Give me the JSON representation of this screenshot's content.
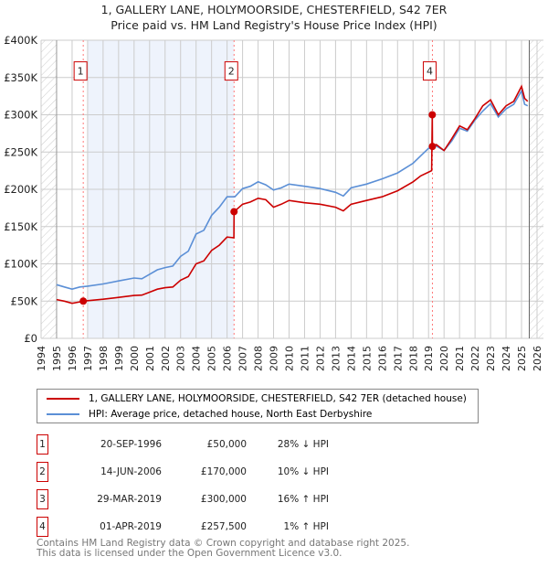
{
  "chart_data": {
    "type": "line",
    "title": "1, GALLERY LANE, HOLYMOORSIDE, CHESTERFIELD, S42 7ER",
    "subtitle": "Price paid vs. HM Land Registry's House Price Index (HPI)",
    "xlim": [
      1994,
      2026
    ],
    "ylim": [
      0,
      400000
    ],
    "yticks": [
      0,
      50000,
      100000,
      150000,
      200000,
      250000,
      300000,
      350000,
      400000
    ],
    "ytick_labels": [
      "£0",
      "£50K",
      "£100K",
      "£150K",
      "£200K",
      "£250K",
      "£300K",
      "£350K",
      "£400K"
    ],
    "xticks": [
      1994,
      1995,
      1996,
      1997,
      1998,
      1999,
      2000,
      2001,
      2002,
      2003,
      2004,
      2005,
      2006,
      2007,
      2008,
      2009,
      2010,
      2011,
      2012,
      2013,
      2014,
      2015,
      2016,
      2017,
      2018,
      2019,
      2020,
      2021,
      2022,
      2023,
      2024,
      2025,
      2026
    ],
    "grid": true,
    "data_range": [
      1995,
      2025.5
    ],
    "shaded_range": [
      1997,
      2006.45
    ],
    "legend_placement": "below",
    "series": [
      {
        "name": "1, GALLERY LANE, HOLYMOORSIDE, CHESTERFIELD, S42 7ER (detached house)",
        "color": "#cc0000",
        "x": [
          1995,
          1995.5,
          1996,
          1996.5,
          1996.72,
          1997,
          1998,
          1999,
          2000,
          2000.5,
          2001,
          2001.5,
          2002,
          2002.5,
          2003,
          2003.5,
          2004,
          2004.5,
          2005,
          2005.5,
          2006,
          2006.44,
          2006.45,
          2007,
          2007.5,
          2008,
          2008.5,
          2009,
          2009.5,
          2010,
          2011,
          2012,
          2013,
          2013.5,
          2014,
          2015,
          2016,
          2017,
          2018,
          2018.5,
          2019.2,
          2019.24,
          2019.25,
          2019.5,
          2020,
          2020.5,
          2021,
          2021.5,
          2022,
          2022.5,
          2023,
          2023.5,
          2024,
          2024.5,
          2025,
          2025.2,
          2025.4
        ],
        "y": [
          52000,
          50000,
          47000,
          49000,
          50000,
          50500,
          52500,
          55000,
          57500,
          58000,
          62000,
          66000,
          68000,
          69000,
          78000,
          83000,
          100000,
          104000,
          118000,
          125000,
          136000,
          135000,
          170000,
          180000,
          183000,
          188000,
          186000,
          176000,
          180000,
          185000,
          182000,
          180000,
          176000,
          171000,
          180000,
          185000,
          190000,
          198000,
          210000,
          218000,
          225000,
          300000,
          257500,
          260000,
          252000,
          268000,
          285000,
          280000,
          295000,
          312000,
          320000,
          300000,
          312000,
          318000,
          338000,
          322000,
          318000
        ]
      },
      {
        "name": "HPI: Average price, detached house, North East Derbyshire",
        "color": "#5b8fd6",
        "x": [
          1995,
          1995.5,
          1996,
          1996.5,
          1997,
          1998,
          1999,
          2000,
          2000.5,
          2001,
          2001.5,
          2002,
          2002.5,
          2003,
          2003.5,
          2004,
          2004.5,
          2005,
          2005.5,
          2006,
          2006.5,
          2007,
          2007.5,
          2008,
          2008.5,
          2009,
          2009.5,
          2010,
          2011,
          2012,
          2013,
          2013.5,
          2014,
          2015,
          2016,
          2017,
          2018,
          2018.5,
          2019,
          2019.5,
          2020,
          2020.5,
          2021,
          2021.5,
          2022,
          2022.5,
          2023,
          2023.5,
          2024,
          2024.5,
          2025,
          2025.2,
          2025.4
        ],
        "y": [
          72000,
          69000,
          66000,
          69000,
          70000,
          73000,
          77000,
          81000,
          80000,
          86000,
          92000,
          95000,
          97000,
          110000,
          117000,
          140000,
          145000,
          165000,
          176000,
          190000,
          190000,
          201000,
          204000,
          210000,
          206000,
          199000,
          202000,
          207000,
          204000,
          201000,
          196000,
          191000,
          202000,
          207000,
          214000,
          222000,
          235000,
          245000,
          255000,
          258000,
          252000,
          265000,
          282000,
          278000,
          293000,
          305000,
          315000,
          297000,
          308000,
          314000,
          332000,
          314000,
          312000
        ]
      }
    ],
    "annotations": [
      {
        "label": "1",
        "x": 1996.72,
        "box_y": 360000
      },
      {
        "label": "2",
        "x": 2006.45,
        "box_y": 360000
      },
      {
        "label": "4",
        "x": 2019.25,
        "box_y": 360000
      }
    ],
    "sales": [
      {
        "num": "1",
        "x": 1996.72,
        "y": 50000
      },
      {
        "num": "2",
        "x": 2006.45,
        "y": 170000
      },
      {
        "num": "3",
        "x": 2019.24,
        "y": 300000
      },
      {
        "num": "4",
        "x": 2019.25,
        "y": 257500
      }
    ]
  },
  "legend": {
    "property": "1, GALLERY LANE, HOLYMOORSIDE, CHESTERFIELD, S42 7ER (detached house)",
    "hpi": "HPI: Average price, detached house, North East Derbyshire"
  },
  "table": [
    {
      "num": "1",
      "date": "20-SEP-1996",
      "price": "£50,000",
      "hpi": "28% ↓ HPI"
    },
    {
      "num": "2",
      "date": "14-JUN-2006",
      "price": "£170,000",
      "hpi": "10% ↓ HPI"
    },
    {
      "num": "3",
      "date": "29-MAR-2019",
      "price": "£300,000",
      "hpi": "16% ↑ HPI"
    },
    {
      "num": "4",
      "date": "01-APR-2019",
      "price": "£257,500",
      "hpi": "1% ↑ HPI"
    }
  ],
  "footer": {
    "line1": "Contains HM Land Registry data © Crown copyright and database right 2025.",
    "line2": "This data is licensed under the Open Government Licence v3.0."
  }
}
